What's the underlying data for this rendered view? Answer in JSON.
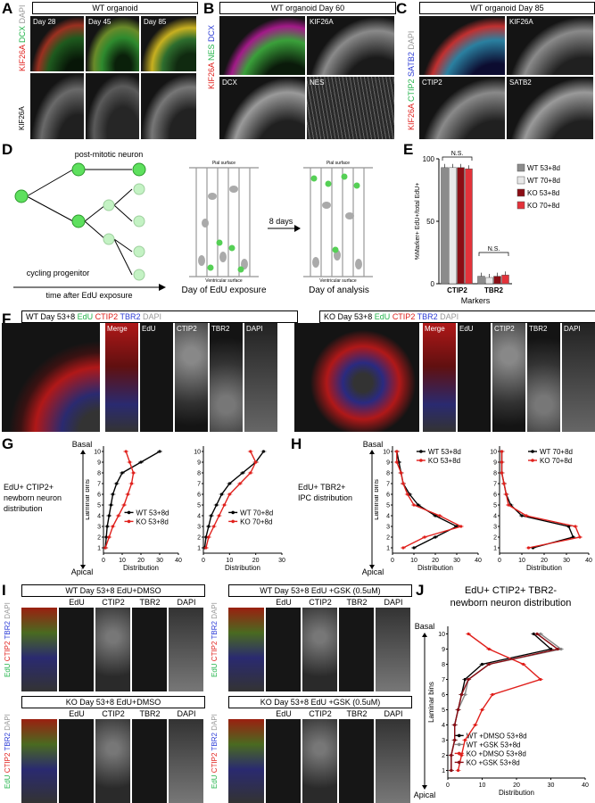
{
  "panels": {
    "A": {
      "letter": "A",
      "title": "WT organoid",
      "days": [
        "Day 28",
        "Day 45",
        "Day 85"
      ],
      "channels": [
        {
          "t": "KIF26A",
          "c": "#e0201c"
        },
        {
          "t": "DCX",
          "c": "#22b34a"
        },
        {
          "t": "DAPI",
          "c": "#999999"
        }
      ],
      "bottom_marker": "KIF26A"
    },
    "B": {
      "letter": "B",
      "title": "WT organoid  Day 60",
      "channels": [
        {
          "t": "KIF26A",
          "c": "#e0201c"
        },
        {
          "t": "NES",
          "c": "#22b34a"
        },
        {
          "t": "DCX",
          "c": "#2b3bd6"
        }
      ],
      "tiles": [
        "KIF26A",
        "DCX",
        "NES"
      ]
    },
    "C": {
      "letter": "C",
      "title": "WT organoid  Day 85",
      "channels": [
        {
          "t": "KIF26A",
          "c": "#e0201c"
        },
        {
          "t": "CTIP2",
          "c": "#22b34a"
        },
        {
          "t": "SATB2",
          "c": "#2b3bd6"
        },
        {
          "t": "DAPI",
          "c": "#999999"
        }
      ],
      "tiles": [
        "KIF26A",
        "CTIP2",
        "SATB2"
      ]
    },
    "D": {
      "letter": "D",
      "post_mitotic": "post-mitotic neuron",
      "cycling": "cycling progenitor",
      "time_axis": "time after EdU exposure",
      "pial": "Pial surface",
      "ventricular": "Ventricular surface",
      "day_exposure": "Day of EdU exposure",
      "day_analysis": "Day of analysis",
      "interval": "8 days"
    },
    "E": {
      "letter": "E",
      "ns1": "N.S.",
      "ns2": "N.S.",
      "xlabel": "Markers",
      "ylabel": "%Marker+ EdU+/total EdU+"
    },
    "F": {
      "letter": "F",
      "wt_title_parts": [
        {
          "t": "WT Day 53+8 ",
          "c": "#000"
        },
        {
          "t": "EdU ",
          "c": "#22b34a"
        },
        {
          "t": "CTIP2 ",
          "c": "#e0201c"
        },
        {
          "t": "TBR2 ",
          "c": "#2b3bd6"
        },
        {
          "t": "DAPI",
          "c": "#999"
        }
      ],
      "ko_title_parts": [
        {
          "t": "KO Day 53+8 ",
          "c": "#000"
        },
        {
          "t": "EdU ",
          "c": "#22b34a"
        },
        {
          "t": "CTIP2 ",
          "c": "#e0201c"
        },
        {
          "t": "TBR2 ",
          "c": "#2b3bd6"
        },
        {
          "t": "DAPI",
          "c": "#999"
        }
      ],
      "columns": [
        "Merge",
        "EdU",
        "CTIP2",
        "TBR2",
        "DAPI"
      ]
    },
    "G": {
      "letter": "G",
      "side_label": "EdU+ CTIP2+\nnewborn neuron\ndistribution",
      "basal": "Basal",
      "apical": "Apical"
    },
    "H": {
      "letter": "H",
      "side_label": "EdU+ TBR2+\nIPC distribution",
      "basal": "Basal",
      "apical": "Apical"
    },
    "I": {
      "letter": "I",
      "titles": [
        "WT Day 53+8 EdU+DMSO",
        "WT Day 53+8 EdU +GSK (0.5uM)",
        "KO Day 53+8 EdU+DMSO",
        "KO Day 53+8  EdU +GSK (0.5uM)"
      ],
      "columns": [
        "EdU",
        "CTIP2",
        "TBR2",
        "DAPI"
      ],
      "side_channels": [
        {
          "t": "EdU",
          "c": "#22b34a"
        },
        {
          "t": "CTIP2",
          "c": "#e0201c"
        },
        {
          "t": "TBR2",
          "c": "#2b3bd6"
        },
        {
          "t": "DAPI",
          "c": "#999"
        }
      ]
    },
    "J": {
      "letter": "J",
      "title_line1": "EdU+ CTIP2+ TBR2-",
      "title_line2": "newborn neuron distribution",
      "basal": "Basal",
      "apical": "Apical"
    }
  },
  "chart_data": [
    {
      "id": "E",
      "type": "bar",
      "categories": [
        "CTIP2",
        "TBR2"
      ],
      "xlabel": "Markers",
      "ylabel": "%Marker+ EdU+/total EdU+",
      "ylim": [
        0,
        100
      ],
      "yticks": [
        0,
        50,
        100
      ],
      "series": [
        {
          "name": "WT 53+8d",
          "color": "#8c8c8c",
          "values": [
            93,
            6
          ]
        },
        {
          "name": "WT 70+8d",
          "color": "#e8e8e8",
          "values": [
            93,
            5
          ]
        },
        {
          "name": "KO 53+8d",
          "color": "#8b0d14",
          "values": [
            93,
            6
          ]
        },
        {
          "name": "KO 70+8d",
          "color": "#e3323a",
          "values": [
            92,
            7
          ]
        }
      ]
    },
    {
      "id": "G1",
      "type": "line",
      "xlabel": "Distribution",
      "ylabel": "Laminar bins",
      "xlim": [
        0,
        40
      ],
      "ylim": [
        1,
        10
      ],
      "xticks": [
        0,
        10,
        20,
        30,
        40
      ],
      "yticks": [
        1,
        2,
        3,
        4,
        5,
        6,
        7,
        8,
        9,
        10
      ],
      "series": [
        {
          "name": "WT 53+8d",
          "color": "#000000",
          "x": [
            1,
            1.5,
            2,
            3,
            4,
            5,
            7,
            10,
            20,
            30
          ],
          "y": [
            1,
            2,
            3,
            4,
            5,
            6,
            7,
            8,
            9,
            10
          ]
        },
        {
          "name": "KO 53+8d",
          "color": "#e0201c",
          "x": [
            1,
            3,
            5,
            8,
            11,
            13,
            15,
            16,
            14,
            12
          ],
          "y": [
            1,
            2,
            3,
            4,
            5,
            6,
            7,
            8,
            9,
            10
          ]
        }
      ]
    },
    {
      "id": "G2",
      "type": "line",
      "xlabel": "Distribution",
      "ylabel": "",
      "xlim": [
        0,
        30
      ],
      "ylim": [
        1,
        10
      ],
      "xticks": [
        0,
        10,
        20,
        30
      ],
      "yticks": [
        1,
        2,
        3,
        4,
        5,
        6,
        7,
        8,
        9,
        10
      ],
      "series": [
        {
          "name": "WT 70+8d",
          "color": "#000000",
          "x": [
            0.5,
            1,
            2,
            3,
            5,
            7,
            10,
            15,
            20,
            23
          ],
          "y": [
            1,
            2,
            3,
            4,
            5,
            6,
            7,
            8,
            9,
            10
          ]
        },
        {
          "name": "KO 70+8d",
          "color": "#e0201c",
          "x": [
            1,
            2,
            4,
            6,
            8,
            10,
            14,
            18,
            20,
            18
          ],
          "y": [
            1,
            2,
            3,
            4,
            5,
            6,
            7,
            8,
            9,
            10
          ]
        }
      ]
    },
    {
      "id": "H1",
      "type": "line",
      "xlabel": "Distribution",
      "ylabel": "Laminar bins",
      "xlim": [
        0,
        40
      ],
      "ylim": [
        1,
        10
      ],
      "xticks": [
        0,
        10,
        20,
        30,
        40
      ],
      "yticks": [
        1,
        2,
        3,
        4,
        5,
        6,
        7,
        8,
        9,
        10
      ],
      "series": [
        {
          "name": "WT 53+8d",
          "color": "#000000",
          "x": [
            10,
            20,
            30,
            20,
            12,
            8,
            5,
            4,
            3,
            2
          ],
          "y": [
            1,
            2,
            3,
            4,
            5,
            6,
            7,
            8,
            9,
            10
          ]
        },
        {
          "name": "KO 53+8d",
          "color": "#e0201c",
          "x": [
            5,
            15,
            32,
            22,
            10,
            7,
            5,
            4,
            2,
            2
          ],
          "y": [
            1,
            2,
            3,
            4,
            5,
            6,
            7,
            8,
            9,
            10
          ]
        }
      ]
    },
    {
      "id": "H2",
      "type": "line",
      "xlabel": "Distribution",
      "ylabel": "",
      "xlim": [
        0,
        40
      ],
      "ylim": [
        1,
        10
      ],
      "xticks": [
        0,
        10,
        20,
        30,
        40
      ],
      "yticks": [
        1,
        2,
        3,
        4,
        5,
        6,
        7,
        8,
        9,
        10
      ],
      "series": [
        {
          "name": "WT 70+8d",
          "color": "#000000",
          "x": [
            15,
            33,
            31,
            10,
            5,
            3,
            2,
            1,
            1,
            1
          ],
          "y": [
            1,
            2,
            3,
            4,
            5,
            6,
            7,
            8,
            9,
            10
          ]
        },
        {
          "name": "KO 70+8d",
          "color": "#e0201c",
          "x": [
            13,
            36,
            34,
            12,
            4,
            3,
            2,
            1,
            1,
            1
          ],
          "y": [
            1,
            2,
            3,
            4,
            5,
            6,
            7,
            8,
            9,
            10
          ]
        }
      ]
    },
    {
      "id": "J",
      "type": "line",
      "xlabel": "Distribution",
      "ylabel": "Laminar bins",
      "xlim": [
        0,
        40
      ],
      "ylim": [
        1,
        10
      ],
      "xticks": [
        0,
        10,
        20,
        30,
        40
      ],
      "yticks": [
        1,
        2,
        3,
        4,
        5,
        6,
        7,
        8,
        9,
        10
      ],
      "series": [
        {
          "name": "WT +DMSO 53+8d",
          "color": "#000000",
          "x": [
            1,
            1,
            2,
            2,
            3,
            4,
            5,
            10,
            30,
            25
          ],
          "y": [
            1,
            2,
            3,
            4,
            5,
            6,
            7,
            8,
            9,
            10
          ]
        },
        {
          "name": "WT +GSK 53+8d",
          "color": "#888888",
          "x": [
            1,
            1,
            2,
            2,
            3,
            5,
            6,
            12,
            33,
            27
          ],
          "y": [
            1,
            2,
            3,
            4,
            5,
            6,
            7,
            8,
            9,
            10
          ]
        },
        {
          "name": "KO +DMSO 53+8d",
          "color": "#e0201c",
          "x": [
            3,
            4,
            5,
            8,
            10,
            13,
            27,
            22,
            12,
            6
          ],
          "y": [
            1,
            2,
            3,
            4,
            5,
            6,
            7,
            8,
            9,
            10
          ]
        },
        {
          "name": "KO +GSK 53+8d",
          "color": "#8b0d14",
          "x": [
            1,
            1,
            2,
            2,
            3,
            4,
            6,
            12,
            32,
            26
          ],
          "y": [
            1,
            2,
            3,
            4,
            5,
            6,
            7,
            8,
            9,
            10
          ]
        }
      ]
    }
  ]
}
